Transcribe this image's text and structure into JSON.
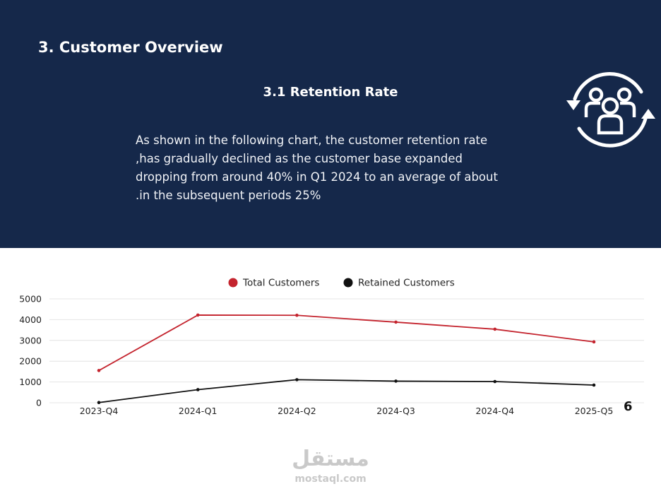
{
  "header": {
    "section_title": "3. Customer Overview",
    "subsection_title": "3.1 Retention Rate",
    "paragraph_lines": [
      "As shown in the following chart, the customer retention rate",
      ",has gradually declined as the customer base expanded",
      "dropping from around 40% in Q1 2024 to an average of about",
      ".in the subsequent periods 25%"
    ],
    "icon": "customers-cycle-icon",
    "background_color": "#15284a"
  },
  "chart_data": {
    "type": "line",
    "categories": [
      "2023-Q4",
      "2024-Q1",
      "2024-Q2",
      "2024-Q3",
      "2024-Q4",
      "2025-Q5"
    ],
    "series": [
      {
        "name": "Total Customers",
        "color": "#c4242e",
        "values": [
          1550,
          4220,
          4210,
          3880,
          3540,
          2930
        ]
      },
      {
        "name": "Retained Customers",
        "color": "#111111",
        "values": [
          10,
          630,
          1110,
          1040,
          1020,
          850
        ]
      }
    ],
    "ylim": [
      0,
      5000
    ],
    "yticks": [
      "0",
      "1000",
      "2000",
      "3000",
      "4000",
      "5000"
    ],
    "grid": true,
    "legend_position": "top-center"
  },
  "footer": {
    "page_number": "6",
    "watermark_arabic": "مستقل",
    "watermark_url": "mostaql.com"
  }
}
